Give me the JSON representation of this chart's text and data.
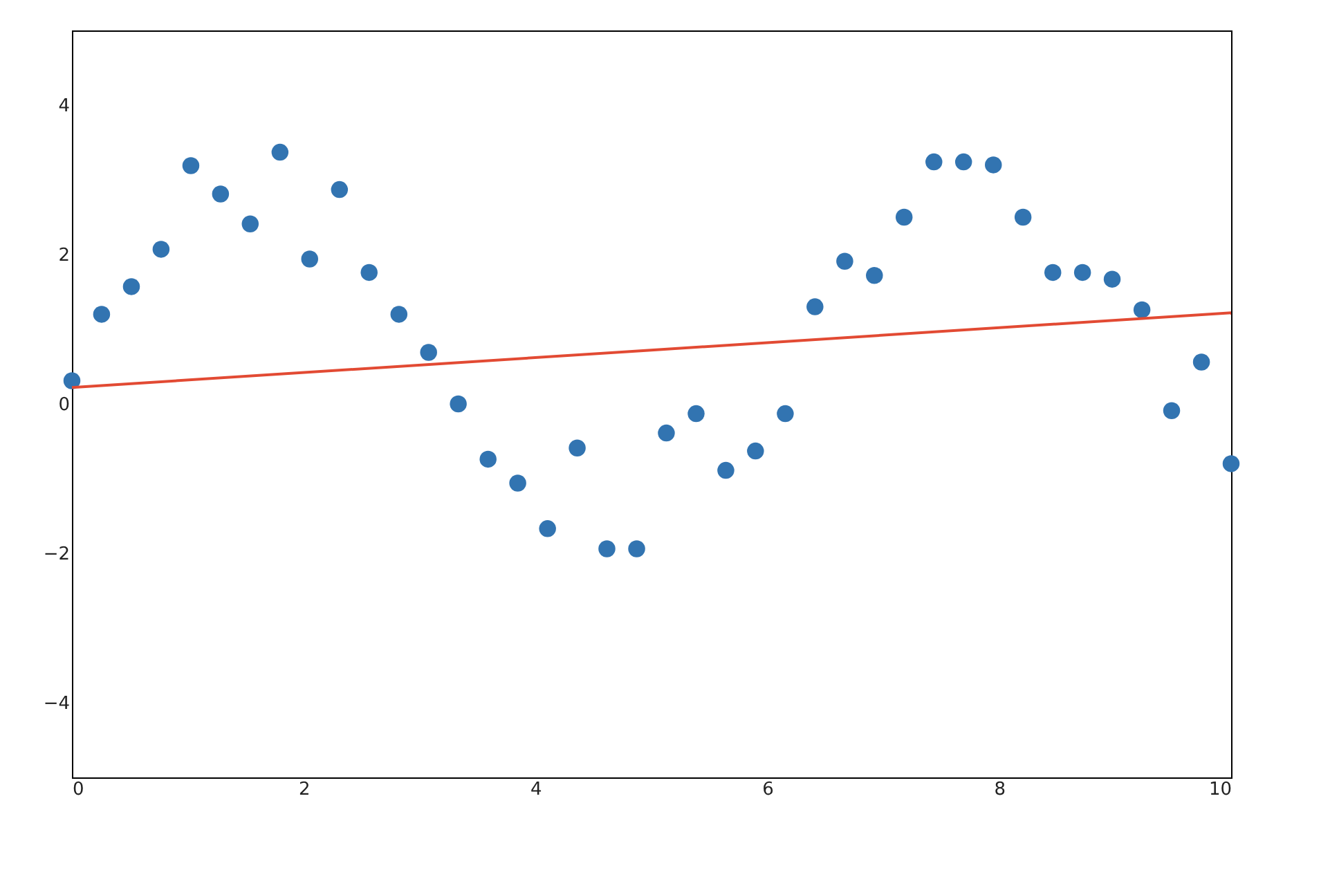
{
  "chart_data": {
    "type": "scatter",
    "xlim": [
      0,
      10
    ],
    "ylim": [
      -5,
      5
    ],
    "xticks": [
      0,
      2,
      4,
      6,
      8,
      10
    ],
    "yticks": [
      -4,
      -2,
      0,
      2,
      4
    ],
    "grid": false,
    "series": [
      {
        "marker": "circle",
        "color": "#3274b1",
        "x": [
          0,
          0.256,
          0.513,
          0.769,
          1.026,
          1.282,
          1.538,
          1.795,
          2.051,
          2.308,
          2.564,
          2.821,
          3.077,
          3.333,
          3.59,
          3.846,
          4.103,
          4.359,
          4.615,
          4.872,
          5.128,
          5.385,
          5.641,
          5.897,
          6.154,
          6.41,
          6.667,
          6.923,
          7.179,
          7.436,
          7.692,
          7.949,
          8.205,
          8.462,
          8.718,
          8.974,
          9.231,
          9.487,
          9.744,
          10
        ],
        "values": [
          0.31,
          1.2,
          1.57,
          2.07,
          3.19,
          2.81,
          2.41,
          3.37,
          1.94,
          2.87,
          1.76,
          1.2,
          0.69,
          0,
          -0.74,
          -1.06,
          -1.67,
          -0.59,
          -1.94,
          -1.94,
          -0.39,
          -0.13,
          -0.89,
          -0.63,
          -0.13,
          1.3,
          1.91,
          1.72,
          2.5,
          3.24,
          3.24,
          3.2,
          2.5,
          1.76,
          1.76,
          1.67,
          1.26,
          -0.09,
          0.56,
          -0.8
        ]
      },
      {
        "type": "line",
        "color": "#e24a33",
        "line_style": "solid",
        "x": [
          0,
          10
        ],
        "values": [
          0.22,
          1.22
        ]
      }
    ]
  }
}
